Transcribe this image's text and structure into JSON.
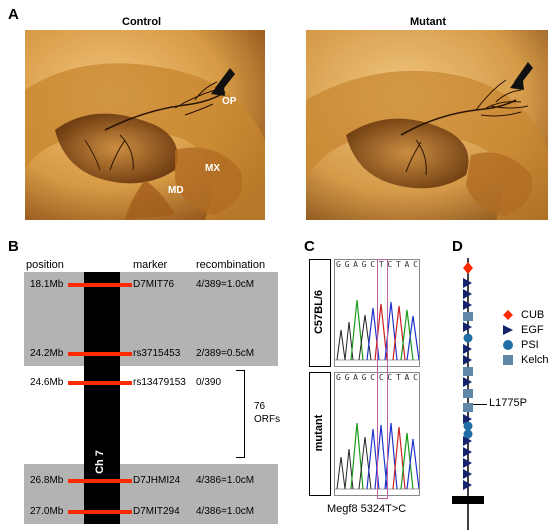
{
  "panel_a": {
    "letter": "A",
    "control_title": "Control",
    "mutant_title": "Mutant",
    "labels": {
      "op": "OP",
      "mx": "MX",
      "md": "MD"
    },
    "colors": {
      "tissue_light": "#d9a24a",
      "tissue_dark": "#3a1a05",
      "nerve": "#2a1404",
      "background": "#e8b868"
    }
  },
  "panel_b": {
    "letter": "B",
    "headers": {
      "position": "position",
      "marker": "marker",
      "recombination": "recombination"
    },
    "rows": [
      {
        "position": "18.1Mb",
        "marker": "D7MIT76",
        "recombination": "4/389=1.0cM"
      },
      {
        "position": "24.2Mb",
        "marker": "rs3715453",
        "recombination": "2/389=0.5cM"
      },
      {
        "position": "24.6Mb",
        "marker": "rs13479153",
        "recombination": "0/390"
      },
      {
        "position": "26.8Mb",
        "marker": "D7JHMI24",
        "recombination": "4/386=1.0cM"
      },
      {
        "position": "27.0Mb",
        "marker": "D7MIT294",
        "recombination": "4/386=1.0cM"
      }
    ],
    "orfs_count": "76",
    "orfs_label": "ORFs",
    "chromosome_label": "Ch 7",
    "colors": {
      "region": "#b3b3b3",
      "marker": "#ff2a00",
      "chromosome": "#000000"
    }
  },
  "panel_c": {
    "letter": "C",
    "strain_top": "C57BL/6",
    "strain_bottom": "mutant",
    "sequence": [
      "G",
      "G",
      "A",
      "G",
      "C",
      "T",
      "C",
      "T",
      "A",
      "C"
    ],
    "sequence_mutant": [
      "G",
      "G",
      "A",
      "G",
      "C",
      "C",
      "C",
      "T",
      "A",
      "C"
    ],
    "caption": "Megf8 5324T>C",
    "colors": {
      "highlight": "#c060a0"
    }
  },
  "panel_d": {
    "letter": "D",
    "legend": [
      {
        "name": "CUB",
        "color": "#ff2a00",
        "icon": "diamond-icon"
      },
      {
        "name": "EGF",
        "color": "#14236b",
        "icon": "triangle-icon"
      },
      {
        "name": "PSI",
        "color": "#1f6fa6",
        "icon": "circle-icon"
      },
      {
        "name": "Kelch",
        "color": "#5f87a8",
        "icon": "square-icon"
      }
    ],
    "mutation": "L1775P"
  }
}
